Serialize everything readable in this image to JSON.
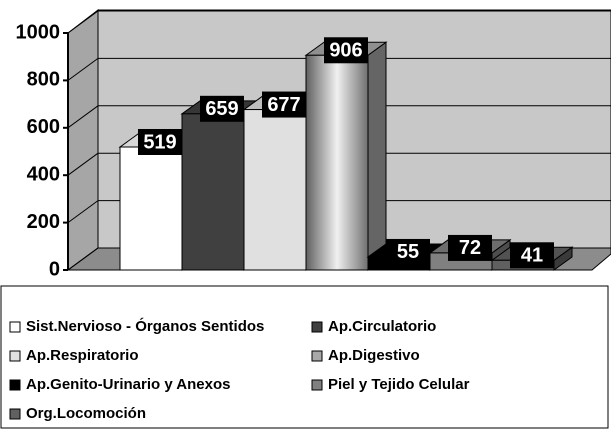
{
  "chart_data": {
    "type": "bar3d",
    "series": [
      {
        "name": "Sist.Nervioso - Órganos Sentidos",
        "color": "#ffffff",
        "values": [
          519
        ]
      },
      {
        "name": "Ap.Circulatorio",
        "color": "#404040",
        "values": [
          659
        ]
      },
      {
        "name": "Ap.Respiratorio",
        "color": "#e0e0e0",
        "values": [
          677
        ]
      },
      {
        "name": "Ap.Digestivo",
        "color": "#a8a8a8",
        "values": [
          906
        ]
      },
      {
        "name": "Ap.Genito-Urinario y Anexos",
        "color": "#000000",
        "values": [
          55
        ]
      },
      {
        "name": "Piel y Tejido Celular",
        "color": "#808080",
        "values": [
          72
        ]
      },
      {
        "name": "Org.Locomoción",
        "color": "#606060",
        "values": [
          41
        ]
      }
    ],
    "ylim": [
      0,
      1000
    ],
    "yticks": [
      0,
      200,
      400,
      600,
      800,
      1000
    ],
    "grid": true,
    "legend": "bottom"
  }
}
